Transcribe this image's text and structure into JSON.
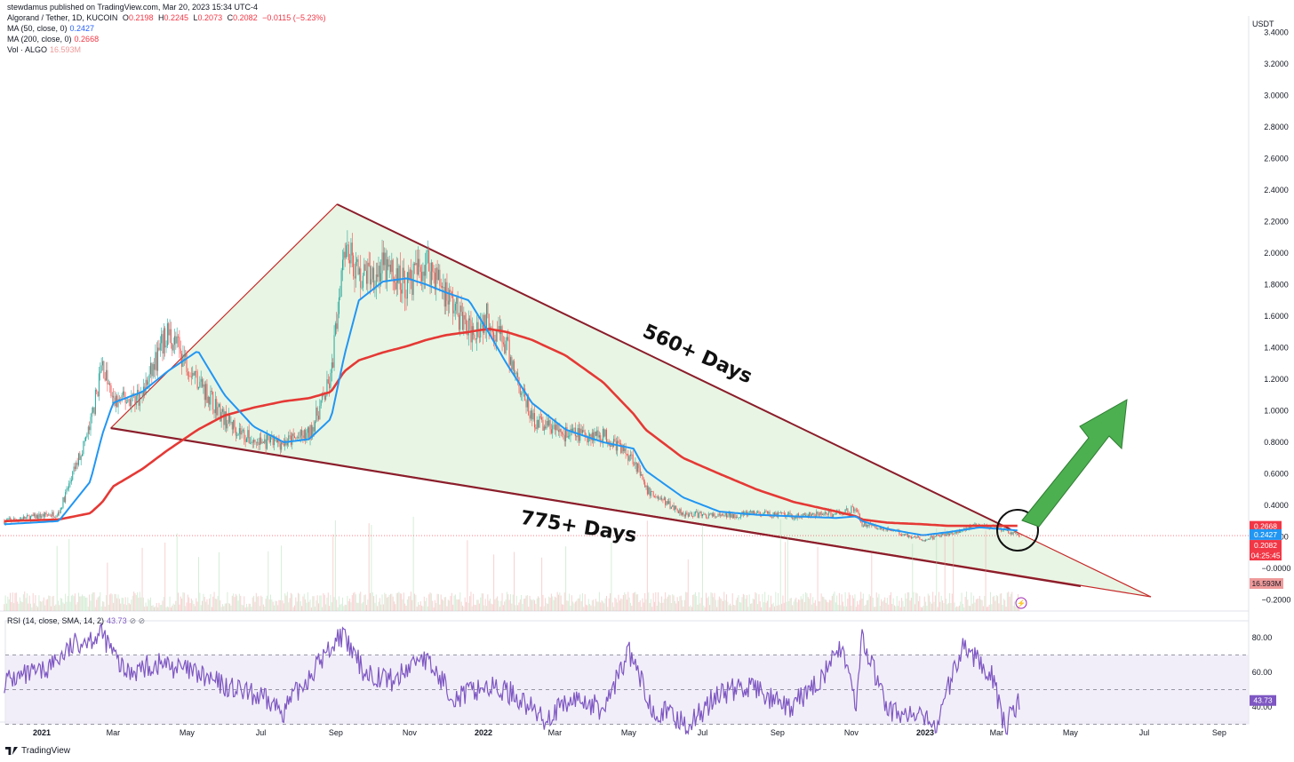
{
  "header": {
    "published": "stewdamus published on TradingView.com, Mar 20, 2023 15:34 UTC-4",
    "symbol": "Algorand / Tether, 1D, KUCOIN",
    "ohlc": {
      "o_label": "O",
      "o": "0.2198",
      "h_label": "H",
      "h": "0.2245",
      "l_label": "L",
      "l": "0.2073",
      "c_label": "C",
      "c": "0.2082",
      "change": "−0.0115 (−5.23%)"
    },
    "ma50_label": "MA (50, close, 0)",
    "ma50_value": "0.2427",
    "ma200_label": "MA (200, close, 0)",
    "ma200_value": "0.2668",
    "vol_label": "Vol · ALGO",
    "vol_value": "16.593M",
    "rsi_label": "RSI (14, close, SMA, 14, 2)",
    "rsi_value": "43.73"
  },
  "price_unit": "USDT",
  "brand": "TradingView",
  "annotations": {
    "upper": "560+ Days",
    "lower": "775+ Days"
  },
  "badges": {
    "ma200": "0.2668",
    "ma50": "0.2427",
    "close": "0.2082",
    "countdown": "04:25:45",
    "volume": "16.593M",
    "rsi": "43.73"
  },
  "colors": {
    "up": "#26a69a",
    "down": "#ef5350",
    "ma50": "#2196f3",
    "ma200": "#e53935",
    "wedge_fill": "#e4f3df",
    "wedge_line": "#8b1e2b",
    "arrow": "#4caf50",
    "rsi": "#7e57c2",
    "rsi_band": "#ede7f6"
  },
  "chart_data": {
    "type": "candlestick",
    "pair": "ALGO/USDT",
    "timeframe": "1D",
    "price_axis_ticks": [
      "3.4000",
      "3.2000",
      "3.0000",
      "2.8000",
      "2.6000",
      "2.4000",
      "2.2000",
      "2.0000",
      "1.8000",
      "1.6000",
      "1.4000",
      "1.2000",
      "1.0000",
      "0.8000",
      "0.6000",
      "0.4000",
      "0.2000",
      "−0.0000",
      "−0.2000"
    ],
    "time_axis_ticks": [
      "2021",
      "Mar",
      "May",
      "Jul",
      "Sep",
      "Nov",
      "2022",
      "Mar",
      "May",
      "Jul",
      "Sep",
      "Nov",
      "2023",
      "Mar",
      "May",
      "Jul",
      "Sep"
    ],
    "rsi_axis_ticks": [
      "80.00",
      "60.00",
      "40.00"
    ],
    "rsi_bands": [
      70,
      30
    ],
    "price_x": [
      "2020-12-01",
      "2021-01-15",
      "2021-02-10",
      "2021-02-20",
      "2021-03-01",
      "2021-03-25",
      "2021-04-15",
      "2021-05-10",
      "2021-06-01",
      "2021-06-25",
      "2021-07-20",
      "2021-08-10",
      "2021-08-28",
      "2021-09-08",
      "2021-09-20",
      "2021-10-10",
      "2021-10-30",
      "2021-11-15",
      "2021-12-01",
      "2021-12-20",
      "2022-01-05",
      "2022-01-20",
      "2022-02-10",
      "2022-03-10",
      "2022-04-10",
      "2022-05-05",
      "2022-05-15",
      "2022-06-15",
      "2022-07-15",
      "2022-08-15",
      "2022-09-15",
      "2022-10-20",
      "2022-11-05",
      "2022-11-10",
      "2022-12-01",
      "2022-12-30",
      "2023-01-20",
      "2023-02-15",
      "2023-03-20"
    ],
    "price_close": [
      0.3,
      0.35,
      0.9,
      1.3,
      1.05,
      1.1,
      1.5,
      1.2,
      0.95,
      0.8,
      0.8,
      0.85,
      1.2,
      2.1,
      1.85,
      1.9,
      1.8,
      1.95,
      1.75,
      1.5,
      1.6,
      1.4,
      0.95,
      0.85,
      0.85,
      0.7,
      0.5,
      0.35,
      0.33,
      0.35,
      0.33,
      0.35,
      0.38,
      0.28,
      0.25,
      0.18,
      0.22,
      0.28,
      0.21
    ],
    "ma50": [
      0.28,
      0.3,
      0.55,
      0.85,
      1.05,
      1.12,
      1.25,
      1.38,
      1.1,
      0.9,
      0.8,
      0.82,
      0.95,
      1.35,
      1.7,
      1.82,
      1.84,
      1.8,
      1.75,
      1.7,
      1.5,
      1.3,
      1.05,
      0.88,
      0.8,
      0.76,
      0.62,
      0.45,
      0.36,
      0.34,
      0.33,
      0.32,
      0.33,
      0.3,
      0.25,
      0.21,
      0.23,
      0.26,
      0.24
    ],
    "ma200": [
      0.3,
      0.31,
      0.35,
      0.42,
      0.52,
      0.63,
      0.75,
      0.88,
      0.97,
      1.02,
      1.06,
      1.08,
      1.12,
      1.25,
      1.32,
      1.37,
      1.41,
      1.45,
      1.48,
      1.5,
      1.52,
      1.5,
      1.45,
      1.35,
      1.18,
      0.98,
      0.88,
      0.7,
      0.6,
      0.5,
      0.42,
      0.36,
      0.33,
      0.31,
      0.29,
      0.28,
      0.27,
      0.27,
      0.27
    ],
    "wedge_upper": {
      "from": [
        "2021-02-27",
        0.89
      ],
      "apex": [
        "2021-09-02",
        2.31
      ],
      "to": [
        "2023-03-12",
        0.25
      ]
    },
    "wedge_lower": {
      "from": [
        "2021-02-27",
        0.89
      ],
      "to": [
        "2023-05-03",
        -0.1
      ]
    },
    "rsi_x": [
      "2020-12-01",
      "2021-01-01",
      "2021-02-01",
      "2021-02-20",
      "2021-03-10",
      "2021-04-10",
      "2021-05-05",
      "2021-06-01",
      "2021-07-01",
      "2021-07-20",
      "2021-08-10",
      "2021-09-05",
      "2021-09-25",
      "2021-10-20",
      "2021-11-10",
      "2021-12-10",
      "2022-01-01",
      "2022-01-25",
      "2022-02-20",
      "2022-03-20",
      "2022-04-10",
      "2022-05-01",
      "2022-05-20",
      "2022-06-20",
      "2022-07-15",
      "2022-08-10",
      "2022-09-10",
      "2022-10-05",
      "2022-10-25",
      "2022-11-05",
      "2022-11-10",
      "2022-12-01",
      "2022-12-20",
      "2023-01-10",
      "2023-02-01",
      "2023-02-25",
      "2023-03-08",
      "2023-03-20"
    ],
    "rsi": [
      55,
      60,
      78,
      82,
      60,
      65,
      60,
      52,
      45,
      38,
      58,
      82,
      60,
      55,
      70,
      45,
      52,
      48,
      33,
      45,
      38,
      72,
      40,
      30,
      48,
      52,
      38,
      55,
      75,
      40,
      80,
      38,
      35,
      30,
      75,
      60,
      28,
      45
    ]
  }
}
